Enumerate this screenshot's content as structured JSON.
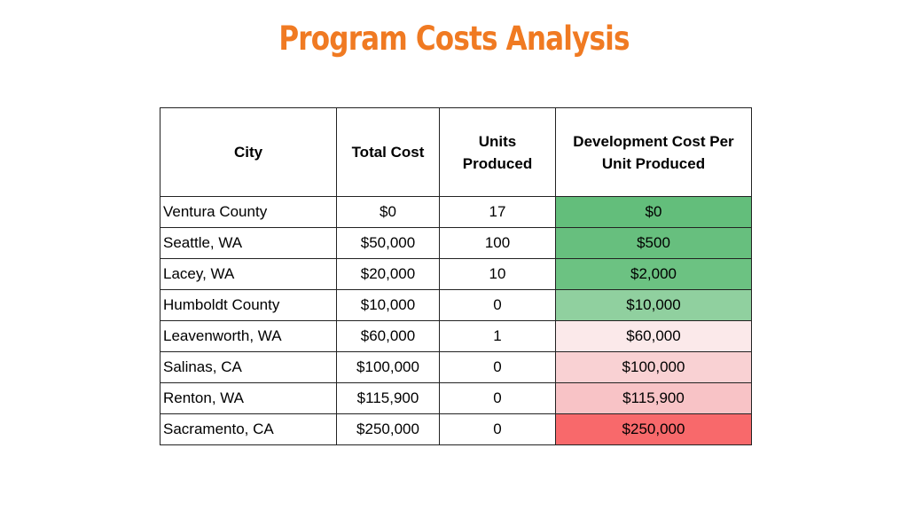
{
  "title": "Program Costs Analysis",
  "colors": {
    "title": "#f07a22",
    "cost_scale": [
      "#63be7b",
      "#67bf7e",
      "#6cc282",
      "#90d09f",
      "#fbe9ea",
      "#f9d1d3",
      "#f8c3c6",
      "#f8696b"
    ]
  },
  "table": {
    "headers": [
      "City",
      "Total Cost",
      "Units Produced",
      "Development Cost Per Unit Produced"
    ],
    "rows": [
      {
        "city": "Ventura County",
        "total_cost": "$0",
        "units": "17",
        "cost_per_unit": "$0"
      },
      {
        "city": "Seattle, WA",
        "total_cost": "$50,000",
        "units": "100",
        "cost_per_unit": "$500"
      },
      {
        "city": "Lacey, WA",
        "total_cost": "$20,000",
        "units": "10",
        "cost_per_unit": "$2,000"
      },
      {
        "city": "Humboldt County",
        "total_cost": "$10,000",
        "units": "0",
        "cost_per_unit": "$10,000"
      },
      {
        "city": "Leavenworth, WA",
        "total_cost": "$60,000",
        "units": "1",
        "cost_per_unit": "$60,000"
      },
      {
        "city": "Salinas, CA",
        "total_cost": "$100,000",
        "units": "0",
        "cost_per_unit": "$100,000"
      },
      {
        "city": "Renton, WA",
        "total_cost": "$115,900",
        "units": "0",
        "cost_per_unit": "$115,900"
      },
      {
        "city": "Sacramento, CA",
        "total_cost": "$250,000",
        "units": "0",
        "cost_per_unit": "$250,000"
      }
    ]
  }
}
